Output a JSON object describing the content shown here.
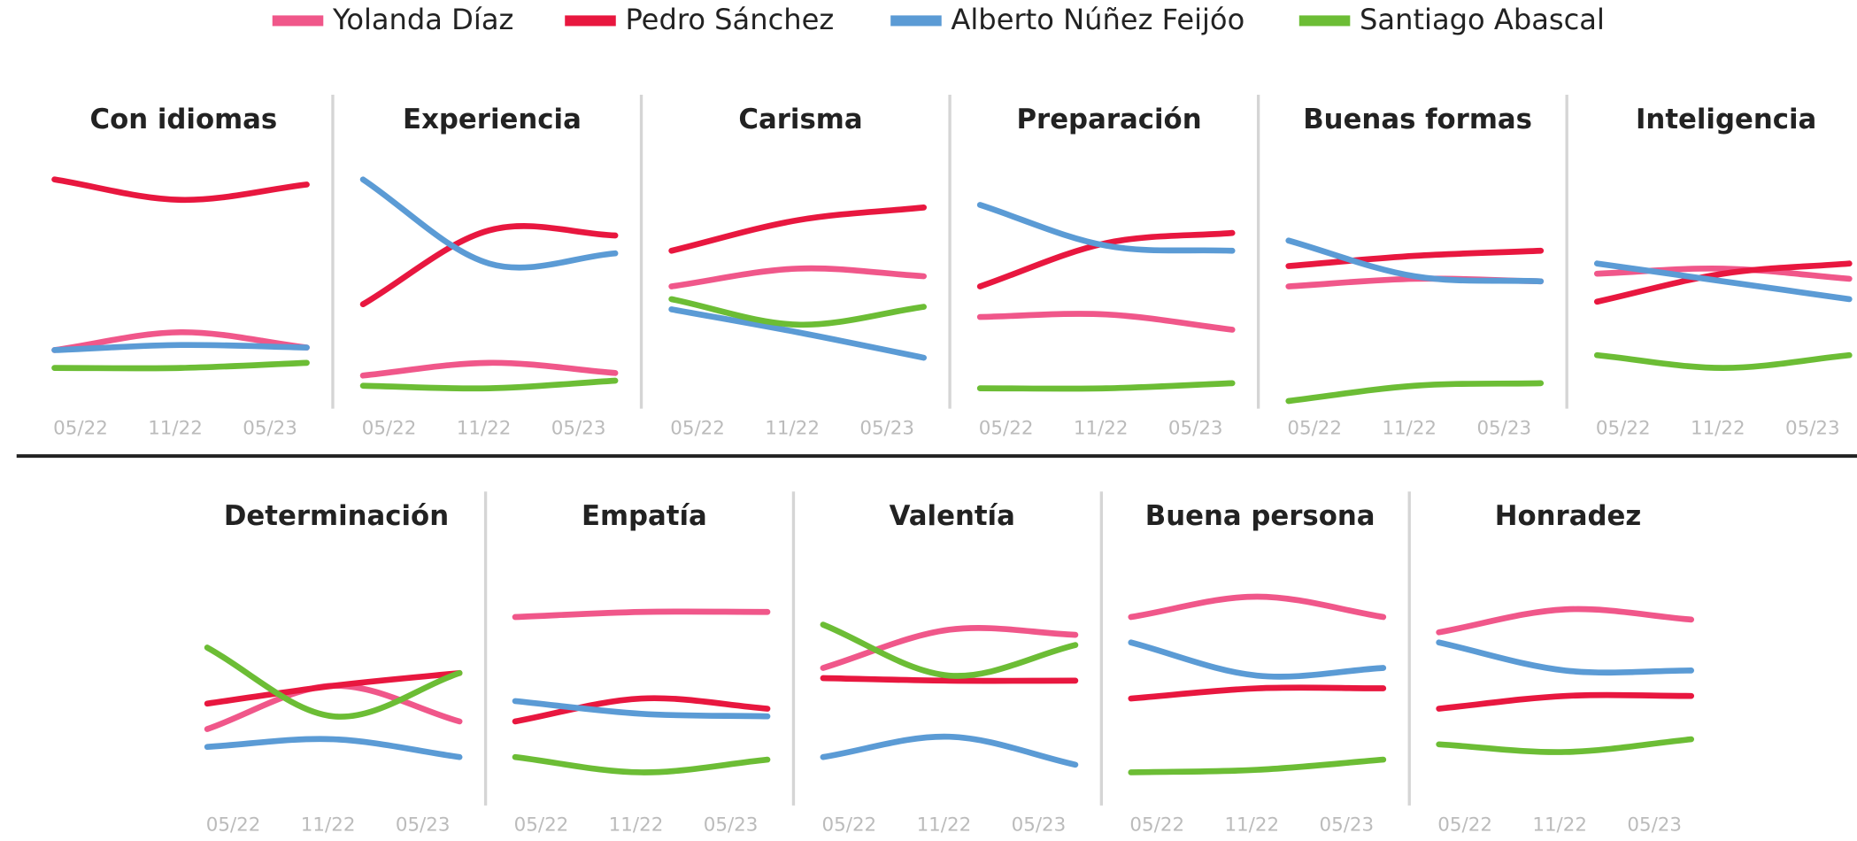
{
  "legend": [
    {
      "name": "Yolanda Díaz",
      "color": "#f0578a"
    },
    {
      "name": "Pedro Sánchez",
      "color": "#e8173f"
    },
    {
      "name": "Alberto Núñez Feijóo",
      "color": "#5b9bd5"
    },
    {
      "name": "Santiago Abascal",
      "color": "#6cbd35"
    }
  ],
  "chart_data": [
    {
      "type": "line",
      "title": "Con idiomas",
      "categories": [
        "05/22",
        "11/22",
        "05/23"
      ],
      "ylim": [
        0,
        100
      ],
      "series": [
        {
          "values": [
            23,
            30,
            24
          ]
        },
        {
          "values": [
            90,
            82,
            88
          ]
        },
        {
          "values": [
            23,
            25,
            24
          ]
        },
        {
          "values": [
            16,
            16,
            18
          ]
        }
      ]
    },
    {
      "type": "line",
      "title": "Experiencia",
      "categories": [
        "05/22",
        "11/22",
        "05/23"
      ],
      "ylim": [
        0,
        100
      ],
      "series": [
        {
          "values": [
            13,
            18,
            14
          ]
        },
        {
          "values": [
            41,
            70,
            68
          ]
        },
        {
          "values": [
            90,
            57,
            61
          ]
        },
        {
          "values": [
            9,
            8,
            11
          ]
        }
      ]
    },
    {
      "type": "line",
      "title": "Carisma",
      "categories": [
        "05/22",
        "11/22",
        "05/23"
      ],
      "ylim": [
        0,
        100
      ],
      "series": [
        {
          "values": [
            48,
            55,
            52
          ]
        },
        {
          "values": [
            62,
            74,
            79
          ]
        },
        {
          "values": [
            39,
            30,
            20
          ]
        },
        {
          "values": [
            43,
            33,
            40
          ]
        }
      ]
    },
    {
      "type": "line",
      "title": "Preparación",
      "categories": [
        "05/22",
        "11/22",
        "05/23"
      ],
      "ylim": [
        0,
        100
      ],
      "series": [
        {
          "values": [
            36,
            37,
            31
          ]
        },
        {
          "values": [
            48,
            65,
            69
          ]
        },
        {
          "values": [
            80,
            64,
            62
          ]
        },
        {
          "values": [
            8,
            8,
            10
          ]
        }
      ]
    },
    {
      "type": "line",
      "title": "Buenas formas",
      "categories": [
        "05/22",
        "11/22",
        "05/23"
      ],
      "ylim": [
        0,
        100
      ],
      "series": [
        {
          "values": [
            48,
            51,
            50
          ]
        },
        {
          "values": [
            56,
            60,
            62
          ]
        },
        {
          "values": [
            66,
            52,
            50
          ]
        },
        {
          "values": [
            3,
            9,
            10
          ]
        }
      ]
    },
    {
      "type": "line",
      "title": "Inteligencia",
      "categories": [
        "05/22",
        "11/22",
        "05/23"
      ],
      "ylim": [
        0,
        100
      ],
      "series": [
        {
          "values": [
            53,
            55,
            51
          ]
        },
        {
          "values": [
            42,
            53,
            57
          ]
        },
        {
          "values": [
            57,
            50,
            43
          ]
        },
        {
          "values": [
            21,
            16,
            21
          ]
        }
      ]
    },
    {
      "type": "line",
      "title": "Determinación",
      "categories": [
        "05/22",
        "11/22",
        "05/23"
      ],
      "ylim": [
        0,
        100
      ],
      "series": [
        {
          "values": [
            30,
            47,
            33
          ]
        },
        {
          "values": [
            40,
            47,
            52
          ]
        },
        {
          "values": [
            23,
            26,
            19
          ]
        },
        {
          "values": [
            62,
            35,
            52
          ]
        }
      ]
    },
    {
      "type": "line",
      "title": "Empatía",
      "categories": [
        "05/22",
        "11/22",
        "05/23"
      ],
      "ylim": [
        0,
        100
      ],
      "series": [
        {
          "values": [
            74,
            76,
            76
          ]
        },
        {
          "values": [
            33,
            42,
            38
          ]
        },
        {
          "values": [
            41,
            36,
            35
          ]
        },
        {
          "values": [
            19,
            13,
            18
          ]
        }
      ]
    },
    {
      "type": "line",
      "title": "Valentía",
      "categories": [
        "05/22",
        "11/22",
        "05/23"
      ],
      "ylim": [
        0,
        100
      ],
      "series": [
        {
          "values": [
            54,
            69,
            67
          ]
        },
        {
          "values": [
            50,
            49,
            49
          ]
        },
        {
          "values": [
            19,
            27,
            16
          ]
        },
        {
          "values": [
            71,
            51,
            63
          ]
        }
      ]
    },
    {
      "type": "line",
      "title": "Buena persona",
      "categories": [
        "05/22",
        "11/22",
        "05/23"
      ],
      "ylim": [
        0,
        100
      ],
      "series": [
        {
          "values": [
            74,
            82,
            74
          ]
        },
        {
          "values": [
            42,
            46,
            46
          ]
        },
        {
          "values": [
            64,
            51,
            54
          ]
        },
        {
          "values": [
            13,
            14,
            18
          ]
        }
      ]
    },
    {
      "type": "line",
      "title": "Honradez",
      "categories": [
        "05/22",
        "11/22",
        "05/23"
      ],
      "ylim": [
        0,
        100
      ],
      "series": [
        {
          "values": [
            68,
            77,
            73
          ]
        },
        {
          "values": [
            38,
            43,
            43
          ]
        },
        {
          "values": [
            64,
            53,
            53
          ]
        },
        {
          "values": [
            24,
            21,
            26
          ]
        }
      ]
    }
  ]
}
